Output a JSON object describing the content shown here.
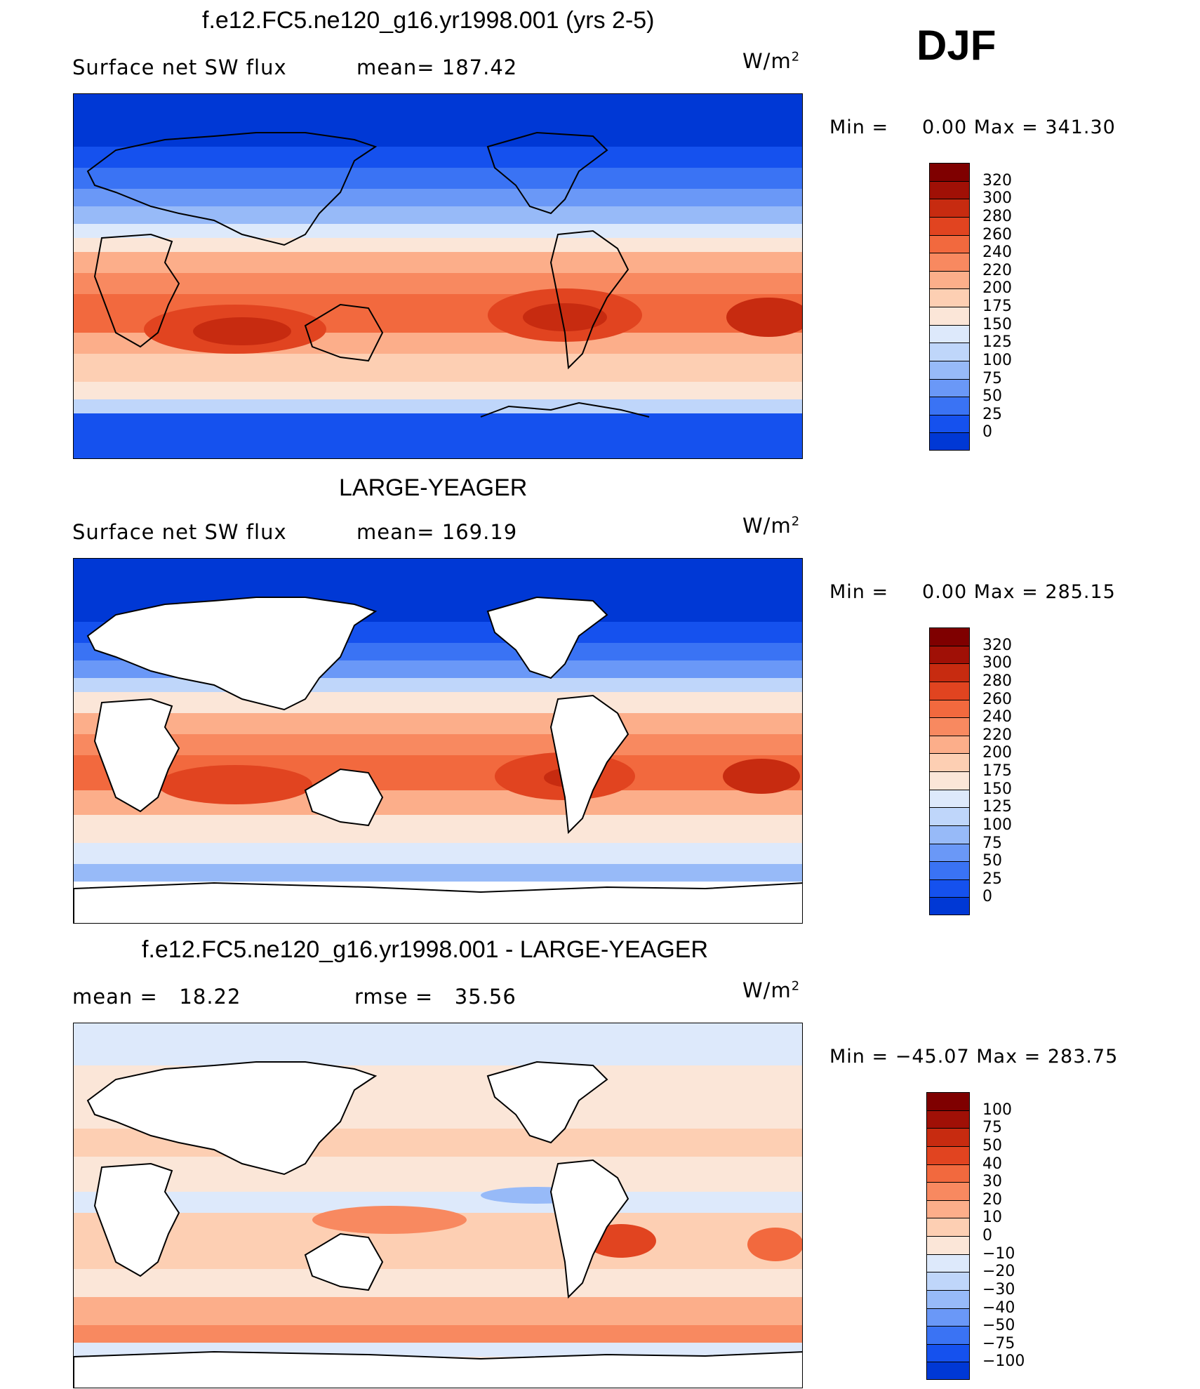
{
  "season": "DJF",
  "colors": {
    "abs_scale": [
      "#00007e",
      "#0022b8",
      "#0038d5",
      "#1551ee",
      "#3a73f4",
      "#6a98f7",
      "#97baf8",
      "#bfd6fa",
      "#dde9fb",
      "#fbe6d8",
      "#fdcfb3",
      "#fcae8a",
      "#f88960",
      "#f2693e",
      "#e14420",
      "#c72b10",
      "#a01006",
      "#7f0000"
    ],
    "diff_scale": [
      "#00007e",
      "#0022b8",
      "#0038d5",
      "#1551ee",
      "#3a73f4",
      "#6a98f7",
      "#97baf8",
      "#bfd6fa",
      "#dde9fb",
      "#fbe6d8",
      "#fdcfb3",
      "#fcae8a",
      "#f88960",
      "#f2693e",
      "#e14420",
      "#c72b10",
      "#a01006",
      "#7f0000"
    ]
  },
  "panels": [
    {
      "title": "f.e12.FC5.ne120_g16.yr1998.001 (yrs 2-5)",
      "left_label": "Surface net SW flux",
      "stat_label": "mean=",
      "stat_value": "187.42",
      "units": "W/m",
      "units_sup": "2",
      "min_label": "Min =",
      "min_value": "0.00",
      "max_label": "Max =",
      "max_value": "341.30",
      "colorbar_labels": [
        "320",
        "300",
        "280",
        "260",
        "240",
        "220",
        "200",
        "175",
        "150",
        "125",
        "100",
        "75",
        "50",
        "25",
        "0"
      ]
    },
    {
      "title": "LARGE-YEAGER",
      "left_label": "Surface net SW flux",
      "stat_label": "mean=",
      "stat_value": "169.19",
      "units": "W/m",
      "units_sup": "2",
      "min_label": "Min =",
      "min_value": "0.00",
      "max_label": "Max =",
      "max_value": "285.15",
      "colorbar_labels": [
        "320",
        "300",
        "280",
        "260",
        "240",
        "220",
        "200",
        "175",
        "150",
        "125",
        "100",
        "75",
        "50",
        "25",
        "0"
      ]
    },
    {
      "title": "f.e12.FC5.ne120_g16.yr1998.001 - LARGE-YEAGER",
      "left_label": "mean =",
      "left_value": "18.22",
      "stat_label": "rmse =",
      "stat_value": "35.56",
      "units": "W/m",
      "units_sup": "2",
      "min_label": "Min =",
      "min_value": "−45.07",
      "max_label": "Max =",
      "max_value": "283.75",
      "colorbar_labels": [
        "100",
        "75",
        "50",
        "40",
        "30",
        "20",
        "10",
        "0",
        "−10",
        "−20",
        "−30",
        "−40",
        "−50",
        "−75",
        "−100"
      ]
    }
  ]
}
